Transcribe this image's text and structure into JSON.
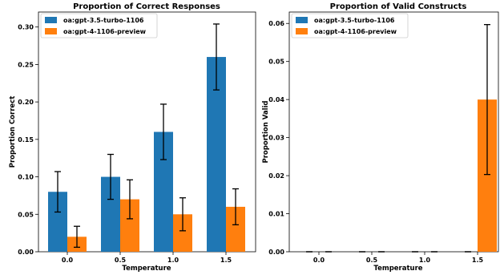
{
  "colors": {
    "series1": "#1f77b4",
    "series2": "#ff7f0e"
  },
  "chart_data": [
    {
      "type": "bar",
      "title": "Proportion of Correct Responses",
      "xlabel": "Temperature",
      "ylabel": "Proportion Correct",
      "categories": [
        "0.0",
        "0.5",
        "1.0",
        "1.5"
      ],
      "ylim": [
        0,
        0.32
      ],
      "yticks": [
        "0.00",
        "0.05",
        "0.10",
        "0.15",
        "0.20",
        "0.25",
        "0.30"
      ],
      "legend_position": "top-left",
      "series": [
        {
          "name": "oa:gpt-3.5-turbo-1106",
          "values": [
            0.08,
            0.1,
            0.16,
            0.26
          ],
          "err_low": [
            0.053,
            0.07,
            0.123,
            0.216
          ],
          "err_high": [
            0.107,
            0.13,
            0.197,
            0.304
          ]
        },
        {
          "name": "oa:gpt-4-1106-preview",
          "values": [
            0.02,
            0.07,
            0.05,
            0.06
          ],
          "err_low": [
            0.006,
            0.044,
            0.028,
            0.036
          ],
          "err_high": [
            0.034,
            0.096,
            0.072,
            0.084
          ]
        }
      ]
    },
    {
      "type": "bar",
      "title": "Proportion of Valid Constructs",
      "xlabel": "Temperature",
      "ylabel": "Proportion Valid",
      "categories": [
        "0.0",
        "0.5",
        "1.0",
        "1.5"
      ],
      "ylim": [
        0,
        0.063
      ],
      "yticks": [
        "0.00",
        "0.01",
        "0.02",
        "0.03",
        "0.04",
        "0.05",
        "0.06"
      ],
      "legend_position": "top-left",
      "series": [
        {
          "name": "oa:gpt-3.5-turbo-1106",
          "values": [
            0,
            0,
            0,
            0
          ],
          "err_low": [
            0,
            0,
            0,
            0
          ],
          "err_high": [
            0,
            0,
            0,
            0
          ]
        },
        {
          "name": "oa:gpt-4-1106-preview",
          "values": [
            0,
            0,
            0,
            0.04
          ],
          "err_low": [
            0,
            0,
            0,
            0.0203
          ],
          "err_high": [
            0,
            0,
            0,
            0.0597
          ]
        }
      ]
    }
  ]
}
